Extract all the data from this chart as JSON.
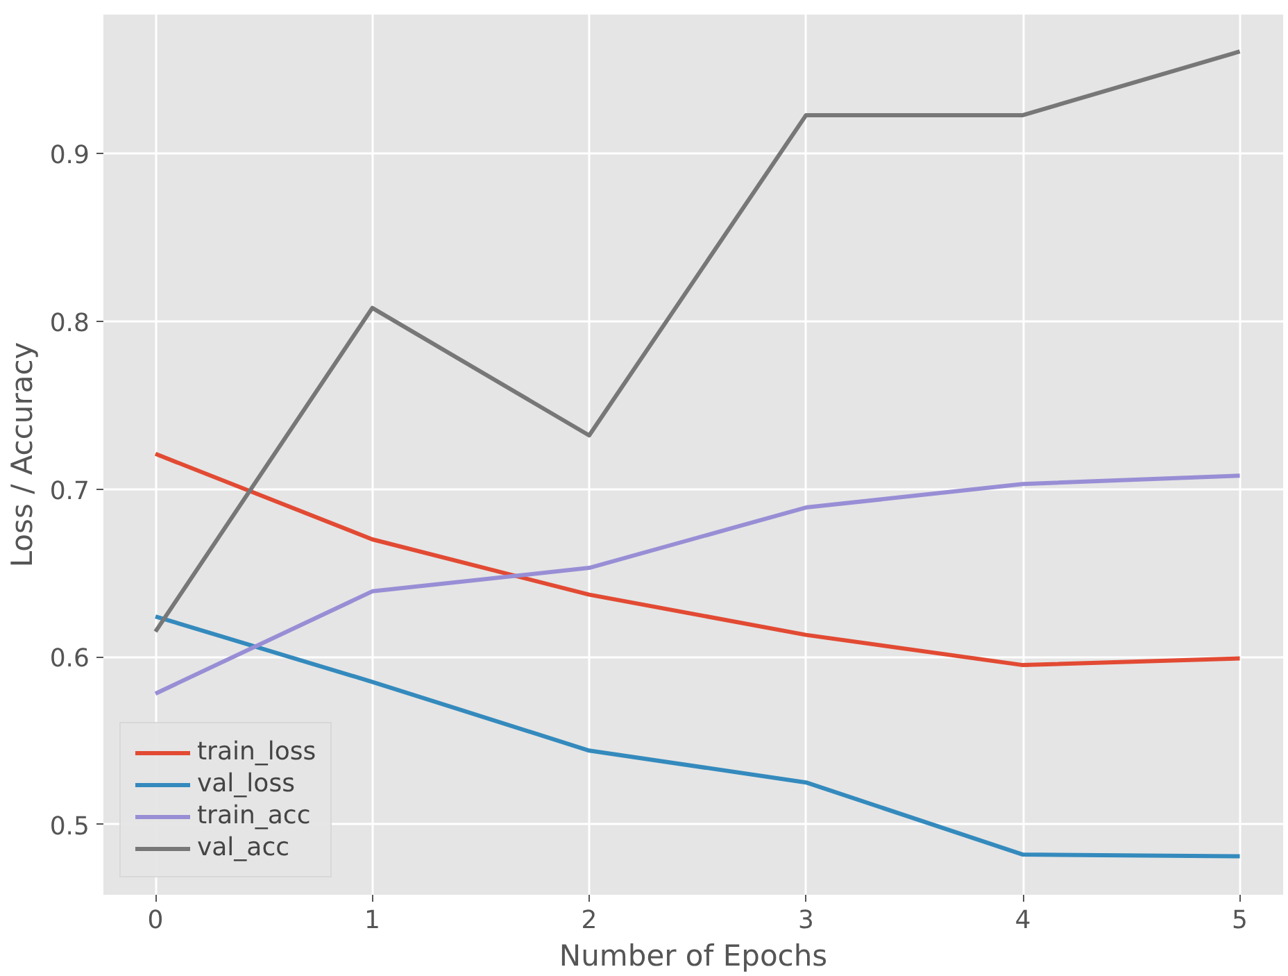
{
  "chart_data": {
    "type": "line",
    "xlabel": "Number of Epochs",
    "ylabel": "Loss / Accuracy",
    "x": [
      0,
      1,
      2,
      3,
      4,
      5
    ],
    "series": [
      {
        "name": "train_loss",
        "color": "#e24a33",
        "values": [
          0.721,
          0.67,
          0.637,
          0.613,
          0.595,
          0.599
        ]
      },
      {
        "name": "val_loss",
        "color": "#348abd",
        "values": [
          0.624,
          0.585,
          0.544,
          0.525,
          0.482,
          0.481
        ]
      },
      {
        "name": "train_acc",
        "color": "#988ed5",
        "values": [
          0.578,
          0.639,
          0.653,
          0.689,
          0.703,
          0.708
        ]
      },
      {
        "name": "val_acc",
        "color": "#777777",
        "values": [
          0.615,
          0.808,
          0.732,
          0.923,
          0.923,
          0.961
        ]
      }
    ],
    "xlim": [
      -0.24,
      5.2
    ],
    "ylim": [
      0.458,
      0.983
    ],
    "xticks": [
      0,
      1,
      2,
      3,
      4,
      5
    ],
    "yticks": [
      0.5,
      0.6,
      0.7,
      0.8,
      0.9
    ],
    "grid": true,
    "legend": "bottom left",
    "marker": "none",
    "line_style": "solid"
  }
}
